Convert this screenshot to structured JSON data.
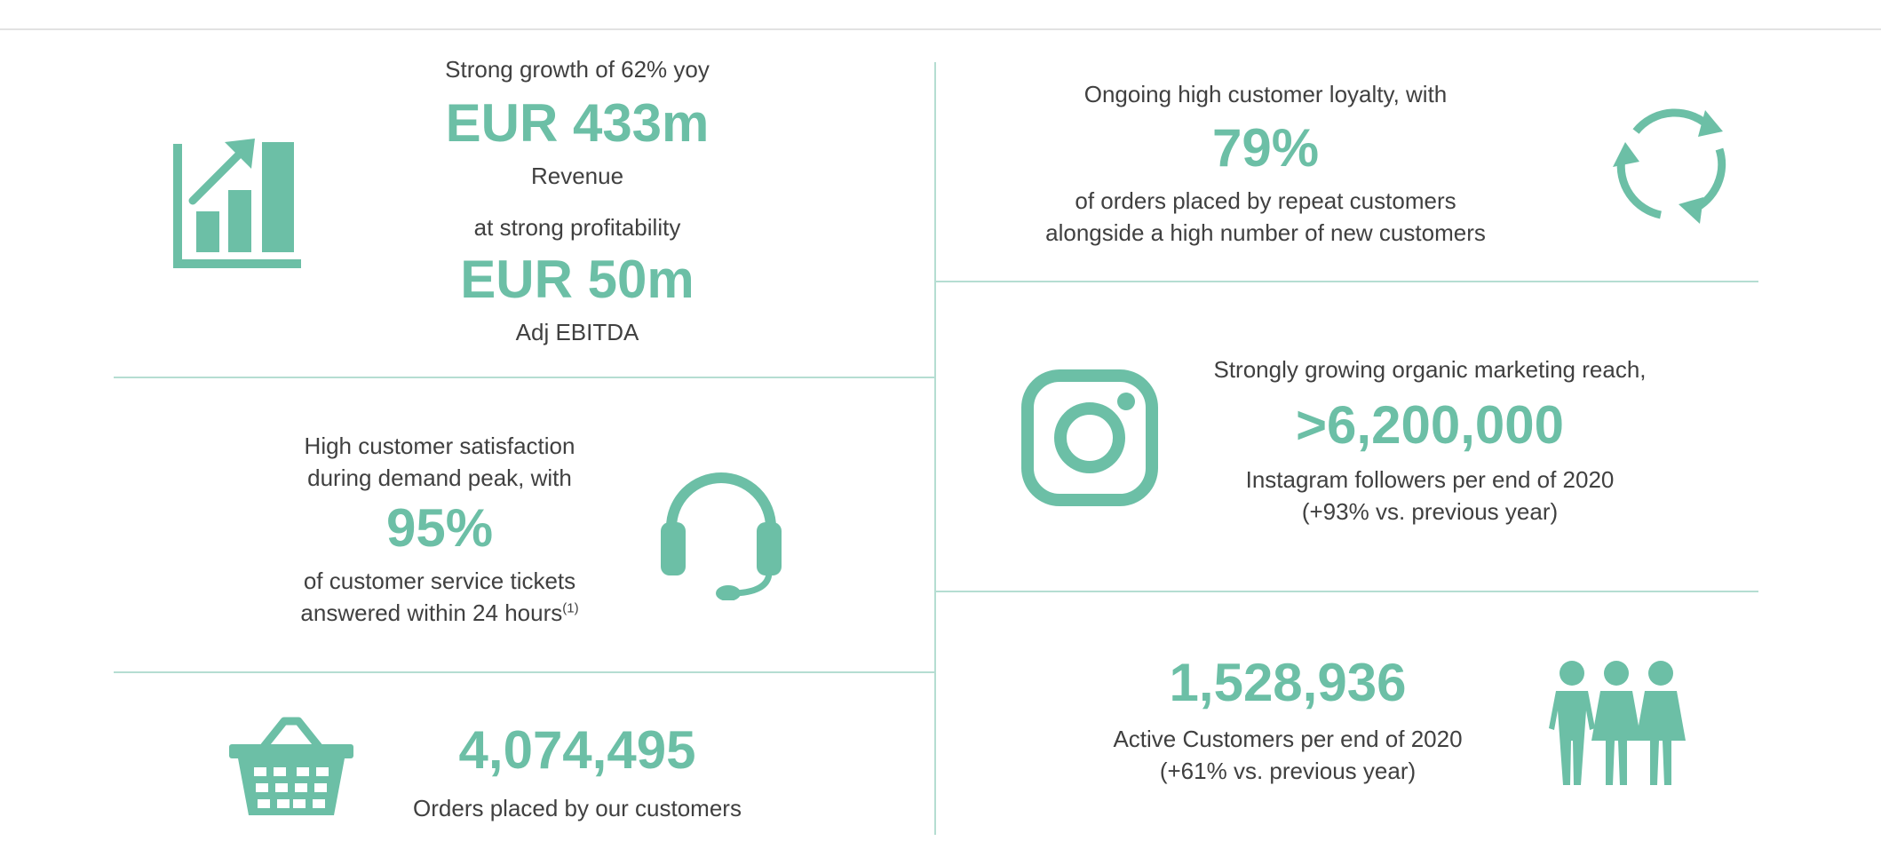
{
  "revenue": {
    "intro": "Strong growth of 62% yoy",
    "value": "EUR 433m",
    "label": "Revenue",
    "profit_intro": "at strong profitability",
    "profit_value": "EUR 50m",
    "profit_label": "Adj EBITDA",
    "icon": "bar-chart-growth-icon"
  },
  "satisfaction": {
    "intro_line1": "High customer satisfaction",
    "intro_line2": "during demand peak, with",
    "value": "95%",
    "label_line1": "of customer service tickets",
    "label_line2": "answered within 24 hours",
    "footnote": "(1)",
    "icon": "headset-icon"
  },
  "orders": {
    "value": "4,074,495",
    "label": "Orders placed by our customers",
    "icon": "shopping-basket-icon"
  },
  "loyalty": {
    "intro": "Ongoing high customer loyalty, with",
    "value": "79%",
    "label_line1": "of orders placed by repeat customers",
    "label_line2": "alongside a high number of new customers",
    "icon": "refresh-cycle-icon"
  },
  "marketing": {
    "intro": "Strongly growing organic marketing reach,",
    "value": ">6,200,000",
    "label_line1": "Instagram followers per end of 2020",
    "label_line2": "(+93% vs. previous year)",
    "icon": "instagram-icon"
  },
  "customers": {
    "value": "1,528,936",
    "label_line1": "Active Customers per end of 2020",
    "label_line2": "(+61% vs. previous year)",
    "icon": "people-group-icon"
  },
  "colors": {
    "accent": "#6cbfa6",
    "divider": "#b5ddd2",
    "text": "#404040"
  }
}
